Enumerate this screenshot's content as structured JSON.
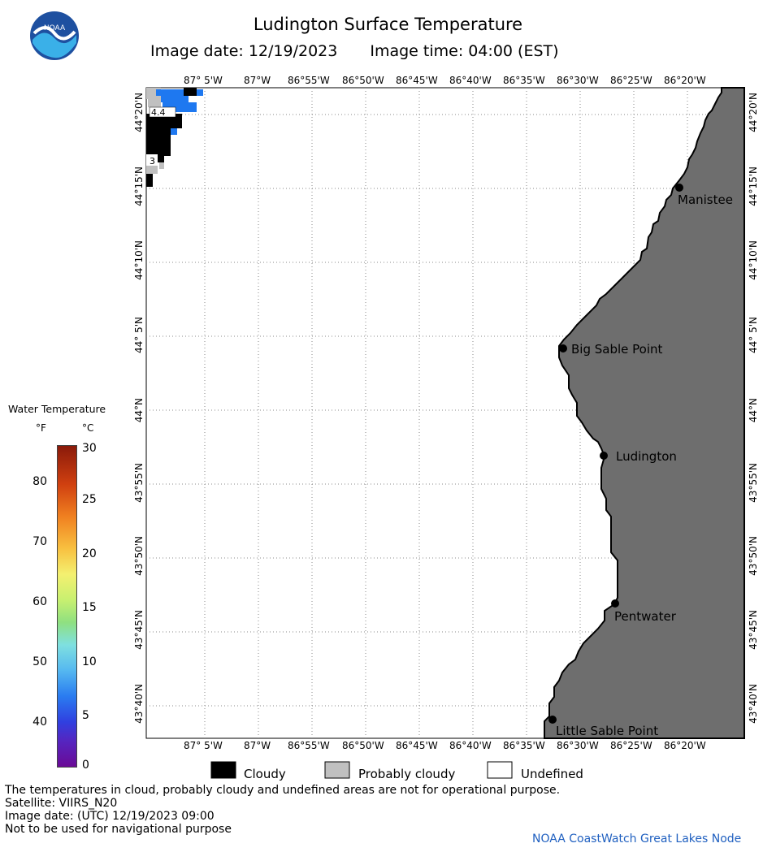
{
  "header": {
    "title": "Ludington Surface Temperature",
    "image_date": "Image date: 12/19/2023",
    "image_time": "Image time: 04:00 (EST)"
  },
  "logo": {
    "text": "NOAA",
    "icon": "noaa-logo-icon"
  },
  "legend": {
    "title": "Water Temperature",
    "unit_f": "°F",
    "unit_c": "°C",
    "ticks_f": [
      "80",
      "70",
      "60",
      "50",
      "40"
    ],
    "ticks_c": [
      "30",
      "25",
      "20",
      "15",
      "10",
      "5",
      "0"
    ]
  },
  "map": {
    "lon_labels": [
      "87° 5'W",
      "87°W",
      "86°55'W",
      "86°50'W",
      "86°45'W",
      "86°40'W",
      "86°35'W",
      "86°30'W",
      "86°25'W",
      "86°20'W"
    ],
    "lat_labels": [
      "44°20'N",
      "44°15'N",
      "44°10'N",
      "44° 5'N",
      "44°N",
      "43°55'N",
      "43°50'N",
      "43°45'N",
      "43°40'N"
    ],
    "places": [
      "Manistee",
      "Big Sable Point",
      "Ludington",
      "Pentwater",
      "Little Sable Point"
    ],
    "cell_labels": [
      "4.4",
      "3"
    ],
    "land_color": "#6e6e6e",
    "cloud_color": "#000000",
    "probably_cloudy_color": "#c0c0c0",
    "water_color": "#1e78f0"
  },
  "key": {
    "cloudy": "Cloudy",
    "probably_cloudy": "Probably cloudy",
    "undefined": "Undefined"
  },
  "notes": [
    "The temperatures in cloud, probably cloudy and undefined areas are not for operational purpose.",
    "Satellite: VIIRS_N20",
    "Image date: (UTC) 12/19/2023  09:00",
    "Not to be used for navigational purpose"
  ],
  "credit": "NOAA CoastWatch Great Lakes Node"
}
